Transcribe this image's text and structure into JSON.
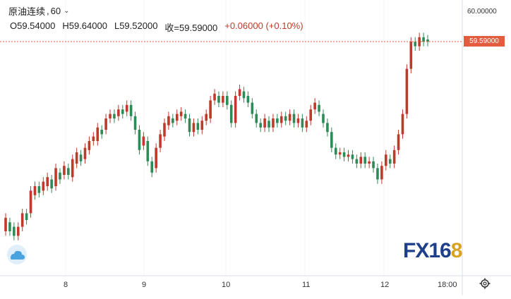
{
  "header": {
    "symbol": "原油连续",
    "separator": ",",
    "interval": "60",
    "chevron_icon": "chevron-down-icon"
  },
  "ohlc": {
    "open": "O59.54000",
    "high": "H59.64000",
    "low": "L59.52000",
    "close": "收=59.59000",
    "change": "+0.06000 (+0.10%)"
  },
  "price_axis": {
    "top_label": "60.00000",
    "current_label": "59.59000",
    "current_color": "#e25c3e"
  },
  "time_axis": {
    "labels": [
      "8",
      "9",
      "10",
      "11",
      "12",
      "18:00"
    ]
  },
  "watermark": {
    "text_main": "FX16",
    "text_accent": "8"
  },
  "icons": {
    "logo": "cloud-logo-icon",
    "settings": "gear-icon"
  },
  "colors": {
    "up": "#c0392b",
    "down": "#2e8b57",
    "accent": "#e25c3e"
  },
  "chart_data": {
    "type": "candlestick",
    "symbol": "原油连续",
    "interval": "60",
    "current": 59.59,
    "ylim_top": 60.0,
    "x_ticks": [
      "8",
      "9",
      "10",
      "11",
      "12",
      "18:00"
    ],
    "candles": [
      {
        "o": 0.1,
        "c": 0.16
      },
      {
        "o": 0.14,
        "c": 0.1
      },
      {
        "o": 0.12,
        "c": 0.08
      },
      {
        "o": 0.08,
        "c": 0.12
      },
      {
        "o": 0.12,
        "c": 0.18
      },
      {
        "o": 0.18,
        "c": 0.15
      },
      {
        "o": 0.18,
        "c": 0.28
      },
      {
        "o": 0.26,
        "c": 0.3
      },
      {
        "o": 0.3,
        "c": 0.27
      },
      {
        "o": 0.28,
        "c": 0.32
      },
      {
        "o": 0.3,
        "c": 0.34
      },
      {
        "o": 0.33,
        "c": 0.29
      },
      {
        "o": 0.3,
        "c": 0.38
      },
      {
        "o": 0.36,
        "c": 0.33
      },
      {
        "o": 0.35,
        "c": 0.39
      },
      {
        "o": 0.38,
        "c": 0.35
      },
      {
        "o": 0.34,
        "c": 0.42
      },
      {
        "o": 0.4,
        "c": 0.45
      },
      {
        "o": 0.44,
        "c": 0.41
      },
      {
        "o": 0.42,
        "c": 0.47
      },
      {
        "o": 0.46,
        "c": 0.5
      },
      {
        "o": 0.5,
        "c": 0.52
      },
      {
        "o": 0.5,
        "c": 0.56
      },
      {
        "o": 0.55,
        "c": 0.53
      },
      {
        "o": 0.55,
        "c": 0.6
      },
      {
        "o": 0.6,
        "c": 0.62
      },
      {
        "o": 0.62,
        "c": 0.6
      },
      {
        "o": 0.61,
        "c": 0.64
      },
      {
        "o": 0.64,
        "c": 0.62
      },
      {
        "o": 0.63,
        "c": 0.66
      },
      {
        "o": 0.66,
        "c": 0.61
      },
      {
        "o": 0.61,
        "c": 0.55
      },
      {
        "o": 0.55,
        "c": 0.46
      },
      {
        "o": 0.48,
        "c": 0.52
      },
      {
        "o": 0.5,
        "c": 0.41
      },
      {
        "o": 0.41,
        "c": 0.36
      },
      {
        "o": 0.38,
        "c": 0.47
      },
      {
        "o": 0.47,
        "c": 0.53
      },
      {
        "o": 0.52,
        "c": 0.58
      },
      {
        "o": 0.57,
        "c": 0.61
      },
      {
        "o": 0.6,
        "c": 0.58
      },
      {
        "o": 0.59,
        "c": 0.62
      },
      {
        "o": 0.61,
        "c": 0.63
      },
      {
        "o": 0.62,
        "c": 0.6
      },
      {
        "o": 0.6,
        "c": 0.54
      },
      {
        "o": 0.54,
        "c": 0.58
      },
      {
        "o": 0.58,
        "c": 0.55
      },
      {
        "o": 0.55,
        "c": 0.59
      },
      {
        "o": 0.59,
        "c": 0.62
      },
      {
        "o": 0.6,
        "c": 0.68
      },
      {
        "o": 0.68,
        "c": 0.71
      },
      {
        "o": 0.7,
        "c": 0.67
      },
      {
        "o": 0.67,
        "c": 0.7
      },
      {
        "o": 0.7,
        "c": 0.66
      },
      {
        "o": 0.66,
        "c": 0.58
      },
      {
        "o": 0.58,
        "c": 0.7
      },
      {
        "o": 0.7,
        "c": 0.73
      },
      {
        "o": 0.72,
        "c": 0.69
      },
      {
        "o": 0.7,
        "c": 0.67
      },
      {
        "o": 0.67,
        "c": 0.62
      },
      {
        "o": 0.62,
        "c": 0.58
      },
      {
        "o": 0.58,
        "c": 0.56
      },
      {
        "o": 0.56,
        "c": 0.6
      },
      {
        "o": 0.59,
        "c": 0.56
      },
      {
        "o": 0.56,
        "c": 0.6
      },
      {
        "o": 0.6,
        "c": 0.58
      },
      {
        "o": 0.58,
        "c": 0.61
      },
      {
        "o": 0.61,
        "c": 0.59
      },
      {
        "o": 0.59,
        "c": 0.62
      },
      {
        "o": 0.62,
        "c": 0.58
      },
      {
        "o": 0.58,
        "c": 0.6
      },
      {
        "o": 0.6,
        "c": 0.56
      },
      {
        "o": 0.56,
        "c": 0.59
      },
      {
        "o": 0.59,
        "c": 0.64
      },
      {
        "o": 0.64,
        "c": 0.67
      },
      {
        "o": 0.66,
        "c": 0.63
      },
      {
        "o": 0.62,
        "c": 0.58
      },
      {
        "o": 0.58,
        "c": 0.54
      },
      {
        "o": 0.54,
        "c": 0.47
      },
      {
        "o": 0.47,
        "c": 0.44
      },
      {
        "o": 0.44,
        "c": 0.45
      },
      {
        "o": 0.45,
        "c": 0.43
      },
      {
        "o": 0.43,
        "c": 0.44
      },
      {
        "o": 0.44,
        "c": 0.42
      },
      {
        "o": 0.42,
        "c": 0.4
      },
      {
        "o": 0.4,
        "c": 0.43
      },
      {
        "o": 0.43,
        "c": 0.4
      },
      {
        "o": 0.4,
        "c": 0.41
      },
      {
        "o": 0.41,
        "c": 0.38
      },
      {
        "o": 0.38,
        "c": 0.33
      },
      {
        "o": 0.33,
        "c": 0.39
      },
      {
        "o": 0.39,
        "c": 0.44
      },
      {
        "o": 0.42,
        "c": 0.4
      },
      {
        "o": 0.4,
        "c": 0.46
      },
      {
        "o": 0.46,
        "c": 0.53
      },
      {
        "o": 0.53,
        "c": 0.62
      },
      {
        "o": 0.62,
        "c": 0.82
      },
      {
        "o": 0.82,
        "c": 0.94
      },
      {
        "o": 0.94,
        "c": 0.92
      },
      {
        "o": 0.92,
        "c": 0.96
      },
      {
        "o": 0.96,
        "c": 0.94
      },
      {
        "o": 0.95,
        "c": 0.94
      }
    ]
  }
}
